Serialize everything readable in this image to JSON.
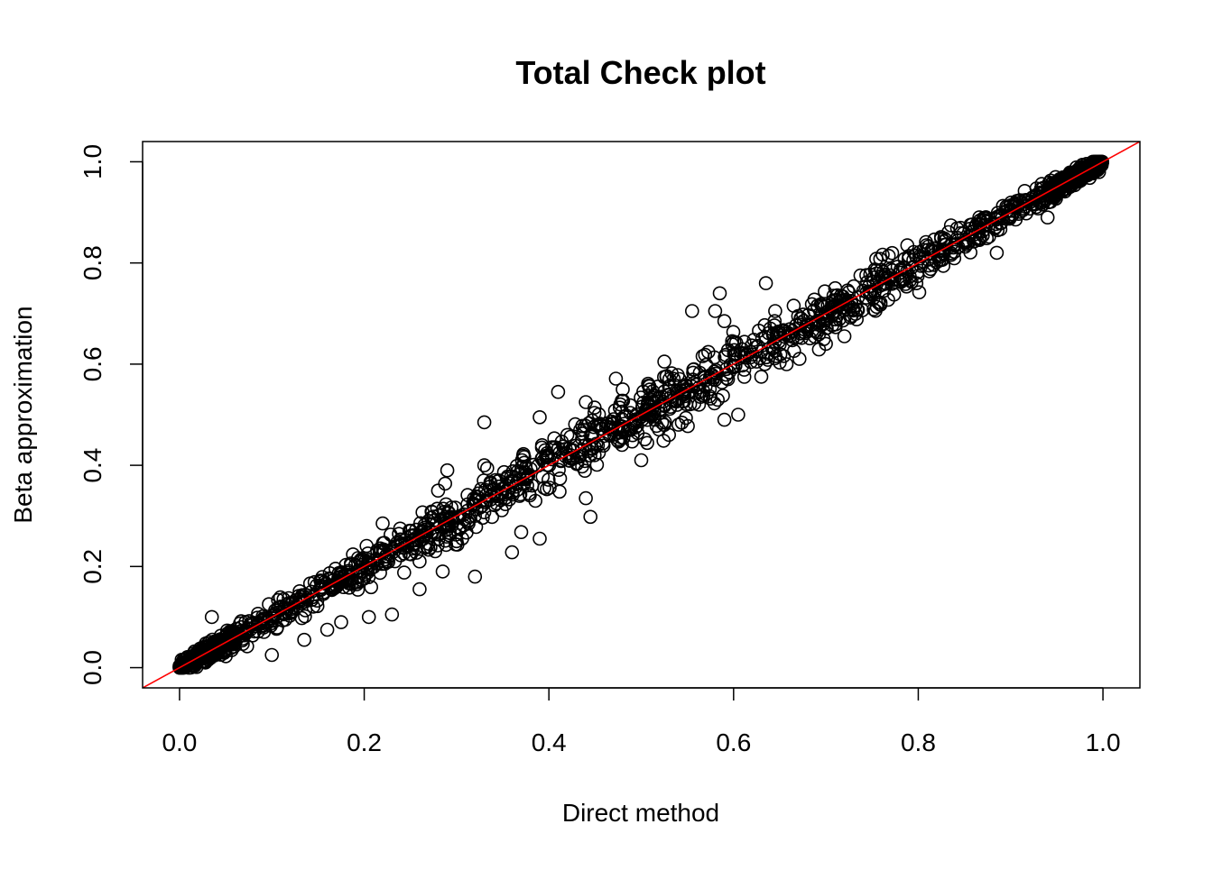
{
  "chart_data": {
    "type": "scatter",
    "title": "Total Check plot",
    "xlabel": "Direct method",
    "ylabel": "Beta approximation",
    "xlim": [
      -0.04,
      1.04
    ],
    "ylim": [
      -0.04,
      1.04
    ],
    "xticks": [
      "0.0",
      "0.2",
      "0.4",
      "0.6",
      "0.8",
      "1.0"
    ],
    "yticks": [
      "0.0",
      "0.2",
      "0.4",
      "0.6",
      "0.8",
      "1.0"
    ],
    "grid": false,
    "legend": "none",
    "point_color": "#000000",
    "reference_line": {
      "slope": 1,
      "intercept": 0,
      "color": "#ff0000"
    },
    "outliers": [
      {
        "x": 0.33,
        "y": 0.485
      },
      {
        "x": 0.41,
        "y": 0.545
      },
      {
        "x": 0.39,
        "y": 0.495
      },
      {
        "x": 0.585,
        "y": 0.74
      },
      {
        "x": 0.635,
        "y": 0.76
      },
      {
        "x": 0.555,
        "y": 0.705
      },
      {
        "x": 0.58,
        "y": 0.705
      },
      {
        "x": 0.48,
        "y": 0.55
      },
      {
        "x": 0.525,
        "y": 0.605
      },
      {
        "x": 0.44,
        "y": 0.525
      },
      {
        "x": 0.29,
        "y": 0.39
      },
      {
        "x": 0.33,
        "y": 0.4
      },
      {
        "x": 0.28,
        "y": 0.35
      },
      {
        "x": 0.22,
        "y": 0.285
      },
      {
        "x": 0.035,
        "y": 0.1
      },
      {
        "x": 0.445,
        "y": 0.298
      },
      {
        "x": 0.39,
        "y": 0.255
      },
      {
        "x": 0.36,
        "y": 0.228
      },
      {
        "x": 0.32,
        "y": 0.18
      },
      {
        "x": 0.26,
        "y": 0.155
      },
      {
        "x": 0.23,
        "y": 0.105
      },
      {
        "x": 0.205,
        "y": 0.1
      },
      {
        "x": 0.1,
        "y": 0.025
      },
      {
        "x": 0.175,
        "y": 0.09
      },
      {
        "x": 0.16,
        "y": 0.075
      },
      {
        "x": 0.885,
        "y": 0.82
      },
      {
        "x": 0.94,
        "y": 0.89
      },
      {
        "x": 0.72,
        "y": 0.655
      },
      {
        "x": 0.67,
        "y": 0.695
      },
      {
        "x": 0.63,
        "y": 0.575
      },
      {
        "x": 0.59,
        "y": 0.49
      },
      {
        "x": 0.5,
        "y": 0.41
      },
      {
        "x": 0.53,
        "y": 0.46
      },
      {
        "x": 0.605,
        "y": 0.5
      },
      {
        "x": 0.44,
        "y": 0.335
      },
      {
        "x": 0.37,
        "y": 0.268
      },
      {
        "x": 0.59,
        "y": 0.685
      },
      {
        "x": 0.645,
        "y": 0.705
      },
      {
        "x": 0.71,
        "y": 0.75
      },
      {
        "x": 0.7,
        "y": 0.64
      },
      {
        "x": 0.42,
        "y": 0.46
      },
      {
        "x": 0.3,
        "y": 0.25
      },
      {
        "x": 0.285,
        "y": 0.19
      },
      {
        "x": 0.135,
        "y": 0.055
      },
      {
        "x": 0.26,
        "y": 0.21
      }
    ]
  }
}
